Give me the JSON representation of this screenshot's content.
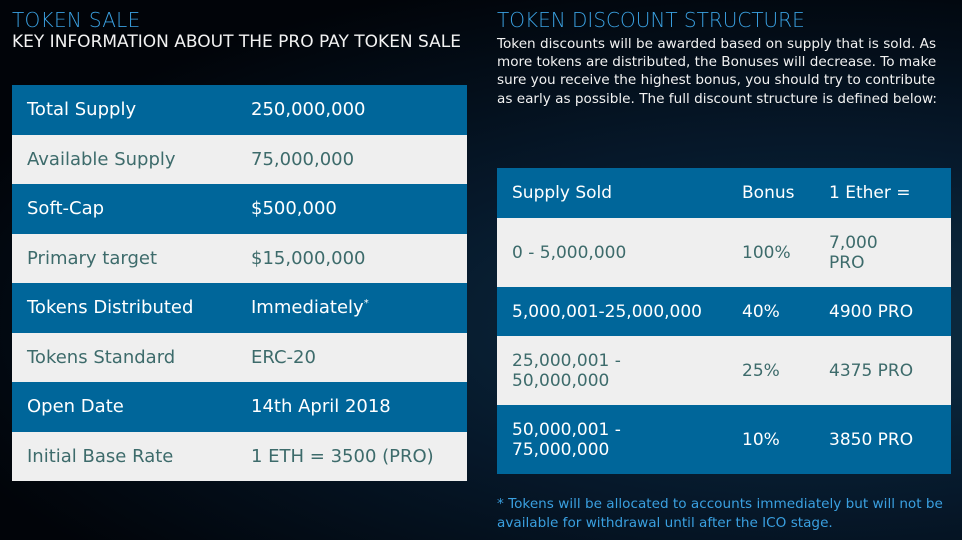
{
  "left": {
    "title": "TOKEN SALE",
    "subtitle": "KEY INFORMATION ABOUT THE PRO PAY TOKEN SALE",
    "rows": [
      {
        "label": "Total Supply",
        "value": "250,000,000"
      },
      {
        "label": "Available Supply",
        "value": "75,000,000"
      },
      {
        "label": "Soft-Cap",
        "value": "$500,000"
      },
      {
        "label": "Primary target",
        "value": "$15,000,000"
      },
      {
        "label": "Tokens Distributed",
        "value": "Immediately",
        "sup": "*"
      },
      {
        "label": "Tokens Standard",
        "value": "ERC-20"
      },
      {
        "label": "Open Date",
        "value": "14th April 2018"
      },
      {
        "label": "Initial Base Rate",
        "value": "1 ETH = 3500 (PRO)"
      }
    ]
  },
  "right": {
    "title": "TOKEN DISCOUNT STRUCTURE",
    "paragraph": "Token discounts will be awarded based on supply that is sold. As more tokens are distributed, the Bonuses will decrease. To make sure you receive the highest bonus, you should try to contribute as early as possible. The full discount structure is defined below:",
    "headers": [
      "Supply Sold",
      "Bonus",
      "1 Ether ="
    ],
    "rows": [
      {
        "supply": "0 - 5,000,000",
        "bonus": "100%",
        "ether": "7,000 PRO"
      },
      {
        "supply": "5,000,001-25,000,000",
        "bonus": "40%",
        "ether": "4900 PRO"
      },
      {
        "supply": "25,000,001 - 50,000,000",
        "bonus": "25%",
        "ether": "4375 PRO"
      },
      {
        "supply": "50,000,001 - 75,000,000",
        "bonus": "10%",
        "ether": "3850 PRO"
      }
    ],
    "footnote": "* Tokens will be allocated to accounts immediately but will not be available for withdrawal until after the ICO stage."
  },
  "colors": {
    "accent": "#3aa0e0",
    "row_blue": "#00669a",
    "row_light": "#efefef",
    "text_dark": "#3d6b6b"
  }
}
